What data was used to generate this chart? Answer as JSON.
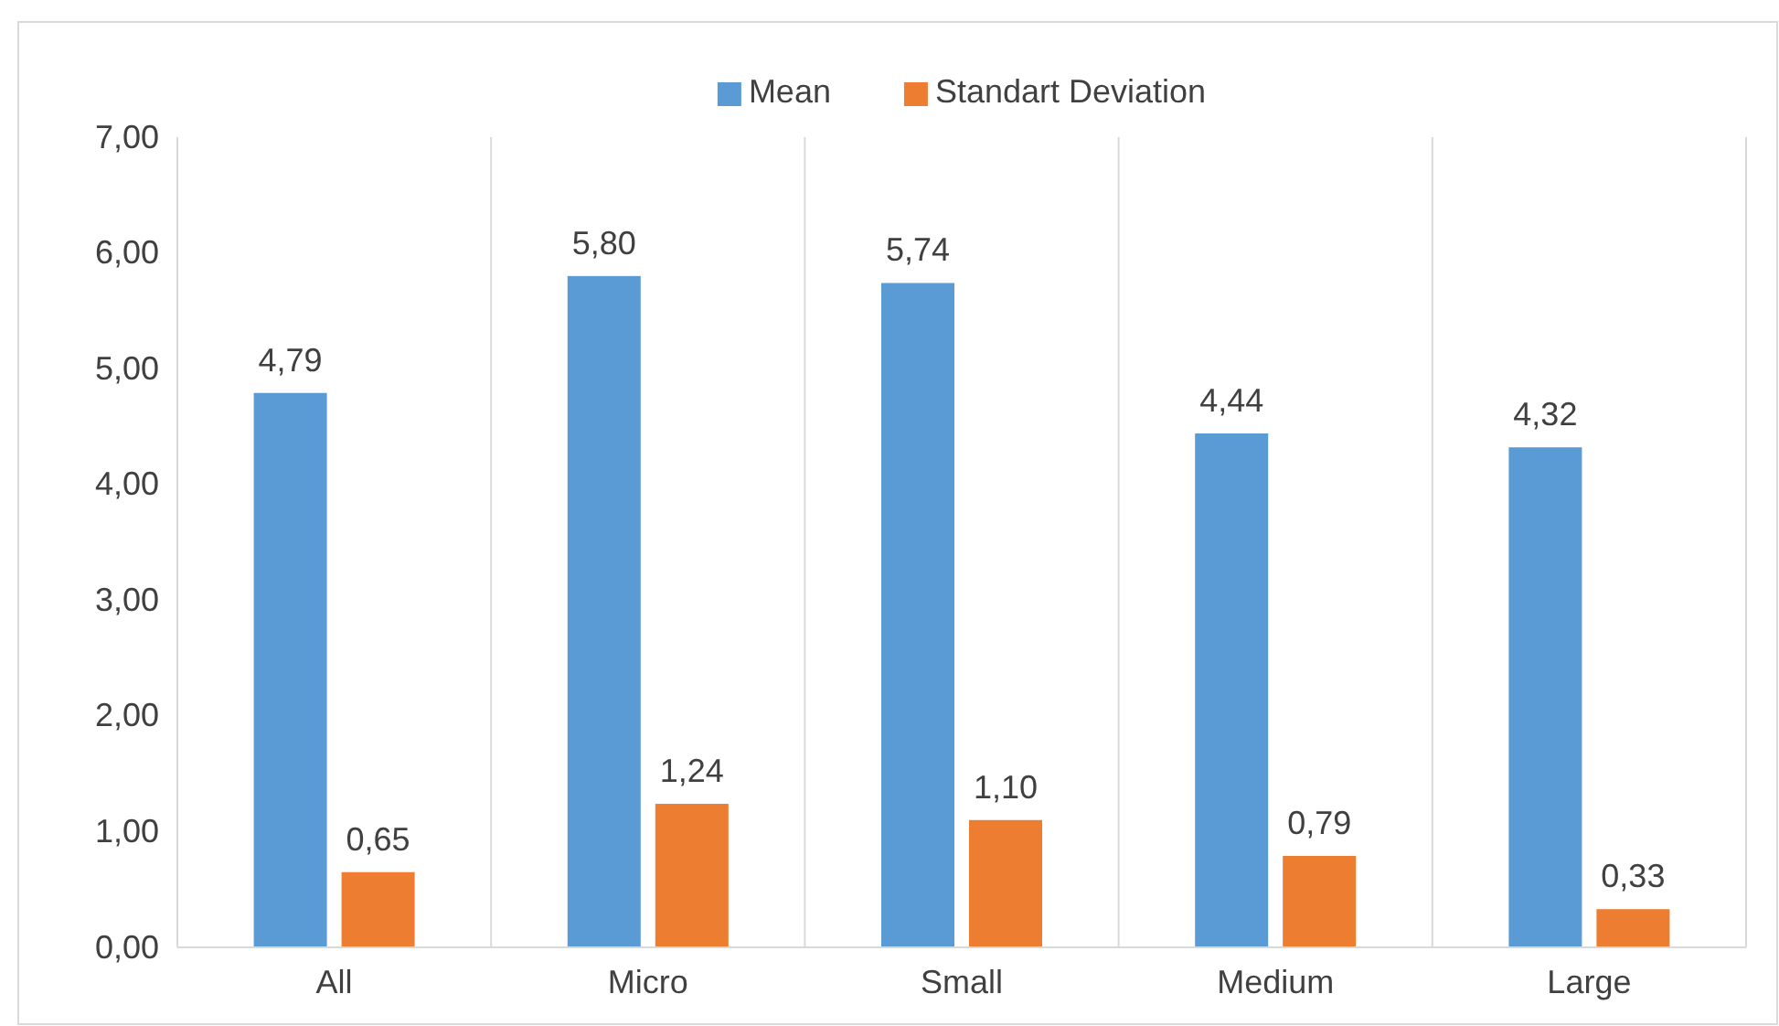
{
  "chart_data": {
    "type": "bar",
    "categories": [
      "All",
      "Micro",
      "Small",
      "Medium",
      "Large"
    ],
    "series": [
      {
        "name": "Mean",
        "color": "#5b9bd5",
        "values": [
          4.79,
          5.8,
          5.74,
          4.44,
          4.32
        ],
        "value_labels": [
          "4,79",
          "5,80",
          "5,74",
          "4,44",
          "4,32"
        ]
      },
      {
        "name": "Standart Deviation",
        "color": "#ed7d31",
        "values": [
          0.65,
          1.24,
          1.1,
          0.79,
          0.33
        ],
        "value_labels": [
          "0,65",
          "1,24",
          "1,10",
          "0,79",
          "0,33"
        ]
      }
    ],
    "ylim": [
      0,
      7
    ],
    "yticks": [
      {
        "value": 0,
        "label": "0,00"
      },
      {
        "value": 1,
        "label": "1,00"
      },
      {
        "value": 2,
        "label": "2,00"
      },
      {
        "value": 3,
        "label": "3,00"
      },
      {
        "value": 4,
        "label": "4,00"
      },
      {
        "value": 5,
        "label": "5,00"
      },
      {
        "value": 6,
        "label": "6,00"
      },
      {
        "value": 7,
        "label": "7,00"
      }
    ],
    "grid": "x",
    "legend": "top"
  }
}
